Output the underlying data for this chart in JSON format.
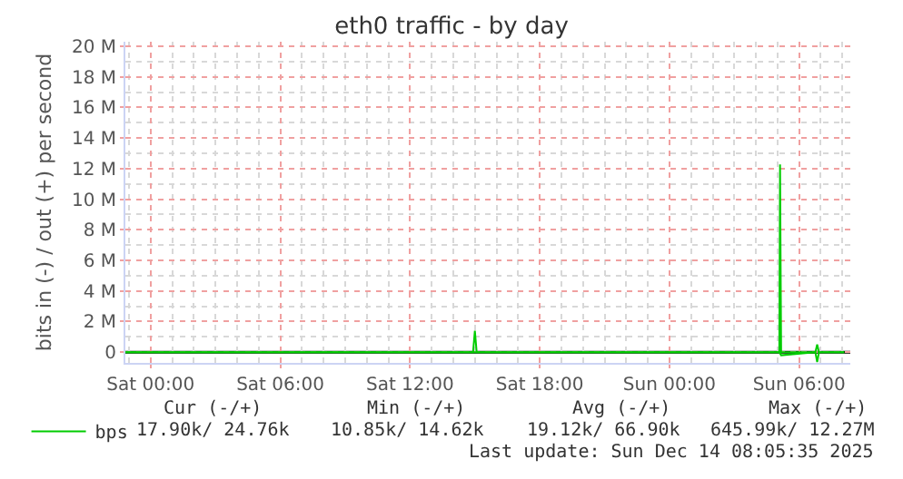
{
  "chart_data": {
    "type": "line",
    "title": "eth0 traffic - by day",
    "ylabel": "bits in (-) / out (+) per second",
    "series": [
      {
        "name": "bps",
        "color": "#00cc00",
        "x": [
          "2025-12-12T22:50",
          "2025-12-13T14:55",
          "2025-12-13T15:00",
          "2025-12-13T15:05",
          "2025-12-14T05:05",
          "2025-12-14T05:07",
          "2025-12-14T05:10",
          "2025-12-14T06:45",
          "2025-12-14T06:50",
          "2025-12-14T06:55",
          "2025-12-14T08:05"
        ],
        "values": [
          0,
          0,
          1.4,
          0,
          0,
          12.27,
          0,
          0,
          0.5,
          0,
          0
        ]
      },
      {
        "color": "#00cc00",
        "x": [
          "2025-12-12T22:50",
          "2025-12-14T05:05",
          "2025-12-14T05:10",
          "2025-12-14T06:45",
          "2025-12-14T06:50",
          "2025-12-14T06:55",
          "2025-12-14T08:05"
        ],
        "values": [
          0,
          0,
          -0.2,
          0,
          -0.65,
          0,
          0
        ]
      }
    ],
    "xlim": [
      "2025-12-12T22:50",
      "2025-12-14T08:22"
    ],
    "xticks": [
      {
        "value": "2025-12-13T00:00",
        "label": "Sat 00:00"
      },
      {
        "value": "2025-12-13T06:00",
        "label": "Sat 06:00"
      },
      {
        "value": "2025-12-13T12:00",
        "label": "Sat 12:00"
      },
      {
        "value": "2025-12-13T18:00",
        "label": "Sat 18:00"
      },
      {
        "value": "2025-12-14T00:00",
        "label": "Sun 00:00"
      },
      {
        "value": "2025-12-14T06:00",
        "label": "Sun 06:00"
      }
    ],
    "ylim": [
      -0.7,
      20.3
    ],
    "yticks": [
      0,
      {
        "value": 2,
        "label": "2 M"
      },
      {
        "value": 4,
        "label": "4 M"
      },
      {
        "value": 6,
        "label": "6 M"
      },
      {
        "value": 8,
        "label": "8 M"
      },
      {
        "value": 10,
        "label": "10 M"
      },
      {
        "value": 12,
        "label": "12 M"
      },
      {
        "value": 14,
        "label": "14 M"
      },
      {
        "value": 16,
        "label": "16 M"
      },
      {
        "value": 18,
        "label": "18 M"
      },
      {
        "value": 20,
        "label": "20 M"
      }
    ],
    "grid": true,
    "legend": "bottom left",
    "line_style": "solid",
    "marker": "none",
    "ref_lines": [
      {
        "axis": "y",
        "value": 0,
        "color": "#000000"
      }
    ],
    "annotations": [
      "Cur (-/+)",
      "Min (-/+)",
      "Avg (-/+)",
      "Max (-/+)",
      "17.90k/ 24.76k",
      "10.85k/ 14.62k",
      "19.12k/ 66.90k",
      "645.99k/ 12.27M",
      "Last update: Sun Dec 14 08:05:35 2025"
    ]
  }
}
